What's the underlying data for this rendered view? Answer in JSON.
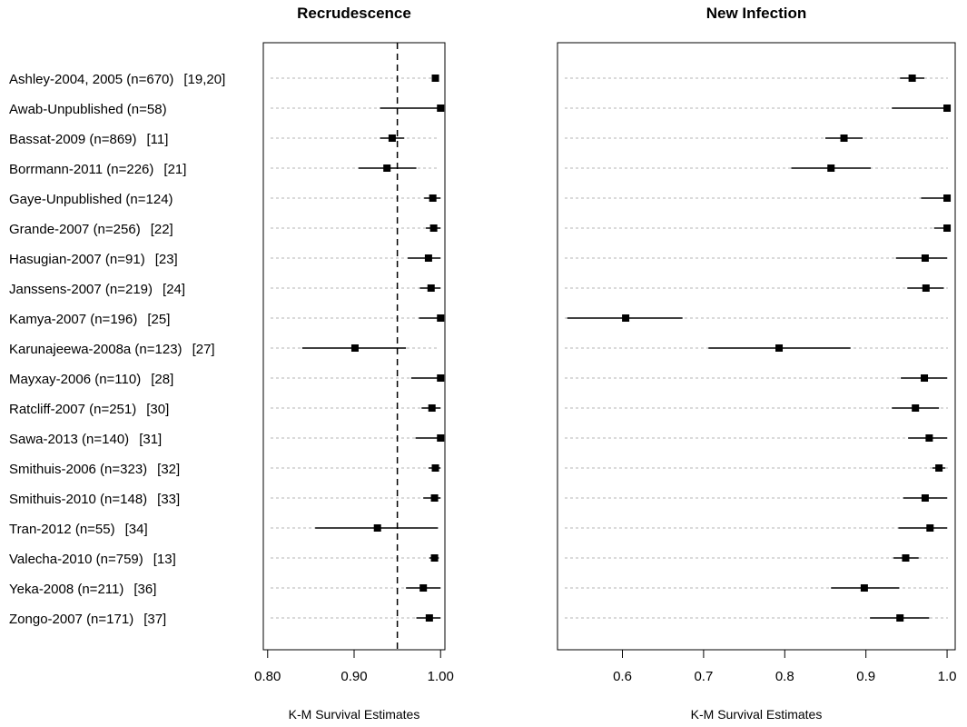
{
  "chart_data": [
    {
      "type": "scatter",
      "subtype": "forest-plot",
      "title": "Recrudescence",
      "xlabel": "K-M Survival Estimates",
      "xlim": [
        0.795,
        1.005
      ],
      "xticks": [
        "0.80",
        "0.90",
        "1.00"
      ],
      "reference_line": 0.95,
      "grid": "horizontal dotted",
      "studies": [
        {
          "label": "Ashley-2004, 2005 (n=670)",
          "ref": "[19,20]",
          "estimate": 0.994,
          "ci": [
            0.99,
            0.998
          ]
        },
        {
          "label": "Awab-Unpublished (n=58)",
          "ref": "",
          "estimate": 1.0,
          "ci": [
            0.93,
            1.0
          ]
        },
        {
          "label": "Bassat-2009 (n=869)",
          "ref": "[11]",
          "estimate": 0.944,
          "ci": [
            0.93,
            0.958
          ]
        },
        {
          "label": "Borrmann-2011 (n=226)",
          "ref": "[21]",
          "estimate": 0.938,
          "ci": [
            0.905,
            0.972
          ]
        },
        {
          "label": "Gaye-Unpublished (n=124)",
          "ref": "",
          "estimate": 0.991,
          "ci": [
            0.981,
            1.0
          ]
        },
        {
          "label": "Grande-2007 (n=256)",
          "ref": "[22]",
          "estimate": 0.992,
          "ci": [
            0.983,
            1.0
          ]
        },
        {
          "label": "Hasugian-2007 (n=91)",
          "ref": "[23]",
          "estimate": 0.986,
          "ci": [
            0.962,
            1.0
          ]
        },
        {
          "label": "Janssens-2007 (n=219)",
          "ref": "[24]",
          "estimate": 0.989,
          "ci": [
            0.976,
            1.0
          ]
        },
        {
          "label": "Kamya-2007 (n=196)",
          "ref": "[25]",
          "estimate": 1.0,
          "ci": [
            0.975,
            1.0
          ]
        },
        {
          "label": "Karunajeewa-2008a (n=123)",
          "ref": "[27]",
          "estimate": 0.901,
          "ci": [
            0.84,
            0.96
          ]
        },
        {
          "label": "Mayxay-2006 (n=110)",
          "ref": "[28]",
          "estimate": 1.0,
          "ci": [
            0.966,
            1.0
          ]
        },
        {
          "label": "Ratcliff-2007 (n=251)",
          "ref": "[30]",
          "estimate": 0.99,
          "ci": [
            0.978,
            1.0
          ]
        },
        {
          "label": "Sawa-2013 (n=140)",
          "ref": "[31]",
          "estimate": 1.0,
          "ci": [
            0.971,
            1.0
          ]
        },
        {
          "label": "Smithuis-2006 (n=323)",
          "ref": "[32]",
          "estimate": 0.994,
          "ci": [
            0.986,
            1.0
          ]
        },
        {
          "label": "Smithuis-2010 (n=148)",
          "ref": "[33]",
          "estimate": 0.993,
          "ci": [
            0.98,
            1.0
          ]
        },
        {
          "label": "Tran-2012 (n=55)",
          "ref": "[34]",
          "estimate": 0.927,
          "ci": [
            0.855,
            0.997
          ]
        },
        {
          "label": "Valecha-2010 (n=759)",
          "ref": "[13]",
          "estimate": 0.993,
          "ci": [
            0.987,
            0.998
          ]
        },
        {
          "label": "Yeka-2008 (n=211)",
          "ref": "[36]",
          "estimate": 0.98,
          "ci": [
            0.96,
            1.0
          ]
        },
        {
          "label": "Zongo-2007 (n=171)",
          "ref": "[37]",
          "estimate": 0.987,
          "ci": [
            0.972,
            1.0
          ]
        }
      ]
    },
    {
      "type": "scatter",
      "subtype": "forest-plot",
      "title": "New Infection",
      "xlabel": "K-M Survival Estimates",
      "xlim": [
        0.52,
        1.01
      ],
      "xticks": [
        "0.6",
        "0.7",
        "0.8",
        "0.9",
        "1.0"
      ],
      "grid": "horizontal dotted",
      "studies": [
        {
          "estimate": 0.957,
          "ci": [
            0.942,
            0.972
          ]
        },
        {
          "estimate": 1.0,
          "ci": [
            0.932,
            1.0
          ]
        },
        {
          "estimate": 0.873,
          "ci": [
            0.85,
            0.896
          ]
        },
        {
          "estimate": 0.857,
          "ci": [
            0.808,
            0.906
          ]
        },
        {
          "estimate": 1.0,
          "ci": [
            0.968,
            1.0
          ]
        },
        {
          "estimate": 1.0,
          "ci": [
            0.984,
            1.0
          ]
        },
        {
          "estimate": 0.973,
          "ci": [
            0.937,
            1.0
          ]
        },
        {
          "estimate": 0.974,
          "ci": [
            0.951,
            0.996
          ]
        },
        {
          "estimate": 0.604,
          "ci": [
            0.532,
            0.674
          ]
        },
        {
          "estimate": 0.793,
          "ci": [
            0.706,
            0.881
          ]
        },
        {
          "estimate": 0.972,
          "ci": [
            0.943,
            1.0
          ]
        },
        {
          "estimate": 0.961,
          "ci": [
            0.932,
            0.99
          ]
        },
        {
          "estimate": 0.978,
          "ci": [
            0.952,
            1.0
          ]
        },
        {
          "estimate": 0.99,
          "ci": [
            0.982,
            0.998
          ]
        },
        {
          "estimate": 0.973,
          "ci": [
            0.946,
            1.0
          ]
        },
        {
          "estimate": 0.979,
          "ci": [
            0.94,
            1.0
          ]
        },
        {
          "estimate": 0.949,
          "ci": [
            0.934,
            0.965
          ]
        },
        {
          "estimate": 0.898,
          "ci": [
            0.857,
            0.941
          ]
        },
        {
          "estimate": 0.942,
          "ci": [
            0.905,
            0.978
          ]
        }
      ]
    }
  ]
}
